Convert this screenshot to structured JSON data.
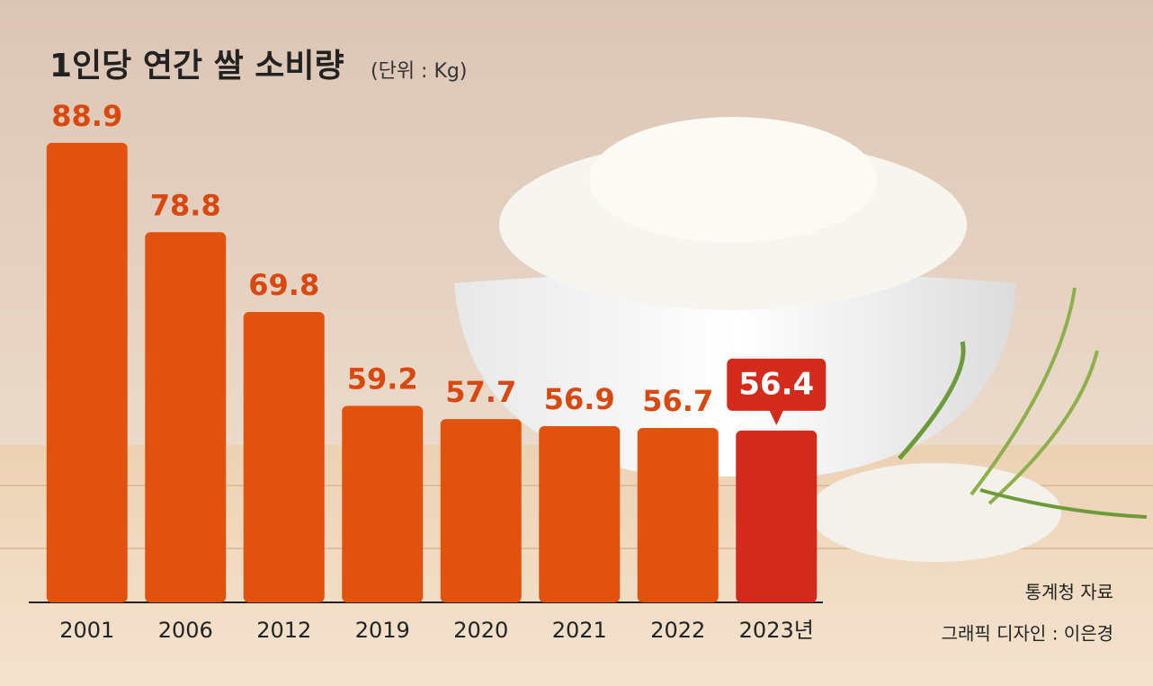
{
  "chart_data": {
    "type": "bar",
    "title": "1인당 연간 쌀 소비량",
    "subtitle": "(단위 : Kg)",
    "categories": [
      "2001",
      "2006",
      "2012",
      "2019",
      "2020",
      "2021",
      "2022",
      "2023년"
    ],
    "values": [
      88.9,
      78.8,
      69.8,
      59.2,
      57.7,
      56.9,
      56.7,
      56.4
    ],
    "colors": [
      "#e2520f",
      "#e2520f",
      "#e2520f",
      "#e2520f",
      "#e2520f",
      "#e2520f",
      "#e2520f",
      "#d42a1b"
    ],
    "highlight_color": "#d42a1b",
    "label_color": "#d9480f",
    "ylim": [
      37,
      90
    ],
    "source": "통계청 자료",
    "credit": "그래픽 디자인 : 이은경"
  }
}
